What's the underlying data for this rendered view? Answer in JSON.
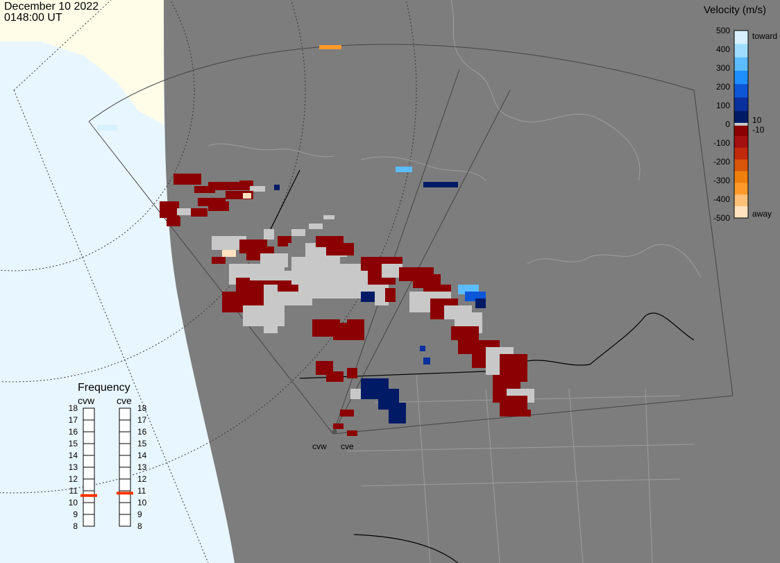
{
  "header": {
    "date": "December 10 2022",
    "time": "0148:00 UT"
  },
  "velocity_scale": {
    "title": "Velocity (m/s)",
    "toward_label": "toward",
    "away_label": "away",
    "ticks": [
      "500",
      "400",
      "300",
      "200",
      "100",
      "0",
      "-100",
      "-200",
      "-300",
      "-400",
      "-500"
    ],
    "inner_positive": "10",
    "inner_negative": "-10",
    "colors": [
      "#d6f0ff",
      "#9fdcff",
      "#5cbcff",
      "#1f8fff",
      "#0d56d8",
      "#0a2f9e",
      "#001a66",
      "#8b0000",
      "#a41010",
      "#c0290c",
      "#d9560a",
      "#ee7f0c",
      "#ff9a2a",
      "#ffc07a",
      "#ffe3c0"
    ],
    "ground_scatter_color": "#c8c8c8"
  },
  "radars": {
    "west_code": "cvw",
    "east_code": "cve"
  },
  "frequency_panel": {
    "title": "Frequency",
    "ticks": [
      "18",
      "17",
      "16",
      "15",
      "14",
      "13",
      "12",
      "11",
      "10",
      "9",
      "8"
    ],
    "columns": [
      {
        "code": "cvw",
        "value_mhz": 10.6
      },
      {
        "code": "cve",
        "value_mhz": 10.8
      }
    ],
    "marker_color": "#ff3300"
  },
  "map_colors": {
    "ocean": "#e8f6ff",
    "land_fov": "#7d7d7d",
    "ice": "#fffde8",
    "borders": "#000000",
    "coast_lines": "#9e9e9e"
  }
}
